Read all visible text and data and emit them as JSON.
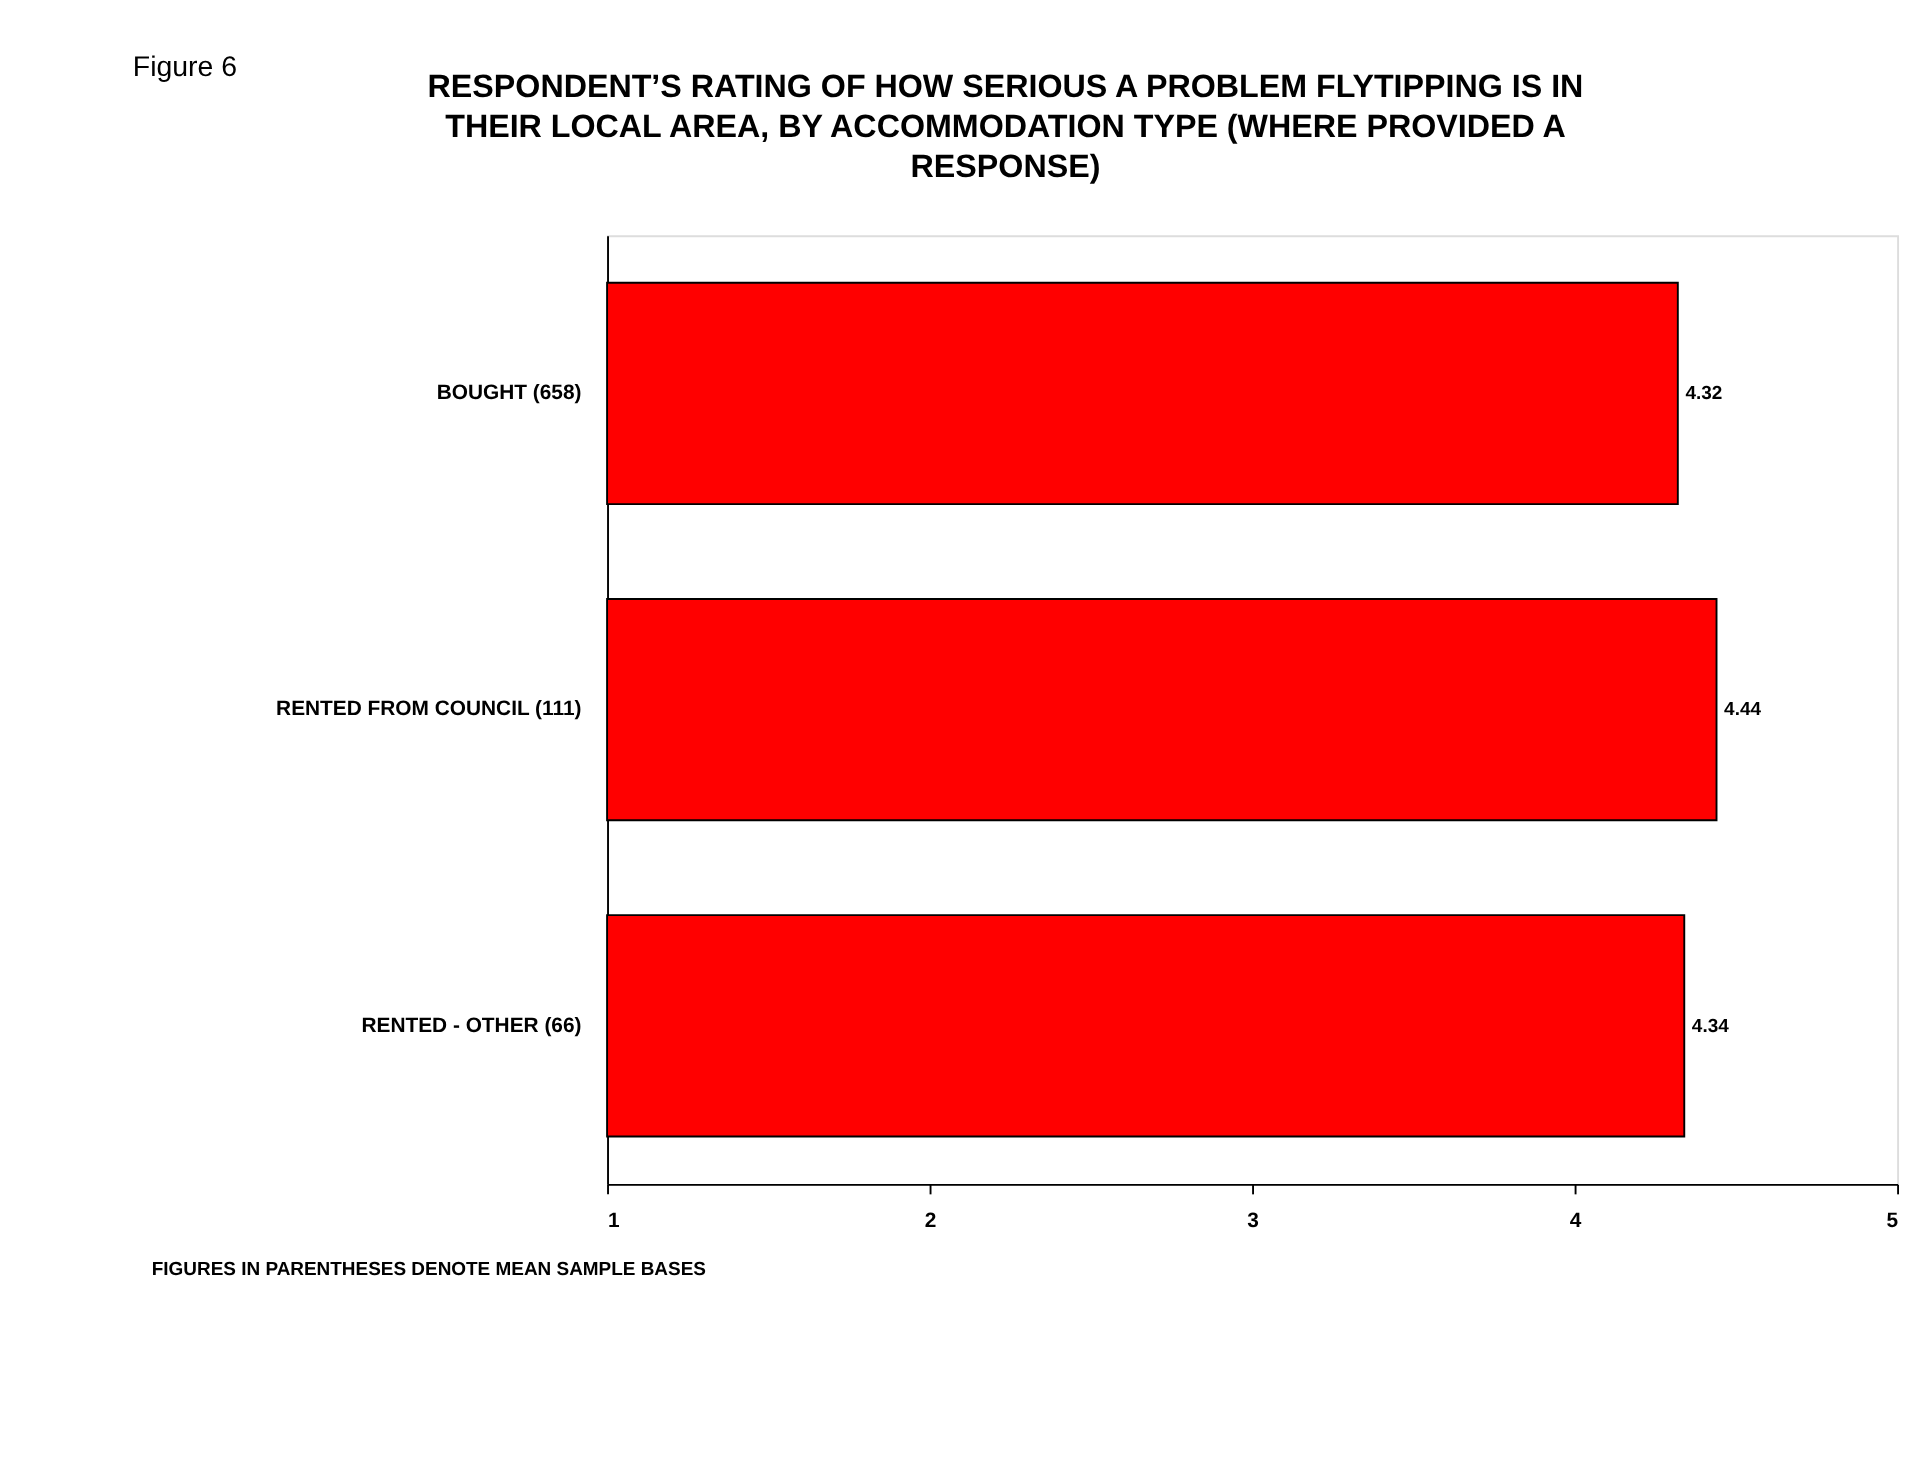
{
  "chart_data": {
    "type": "bar",
    "orientation": "horizontal",
    "title": "RESPONDENT’S RATING OF HOW SERIOUS A PROBLEM FLYTIPPING IS IN THEIR LOCAL AREA, BY ACCOMMODATION TYPE (WHERE PROVIDED A RESPONSE)",
    "categories": [
      "BOUGHT (658)",
      "RENTED FROM COUNCIL (111)",
      "RENTED - OTHER (66)"
    ],
    "values": [
      4.32,
      4.44,
      4.34
    ],
    "color": "#ff0000",
    "xlim": [
      1,
      5
    ],
    "xticks": [
      1,
      2,
      3,
      4,
      5
    ],
    "data_labels": true,
    "grid": false,
    "annotations": [
      "Figure 6",
      "FIGURES IN PARENTHESES DENOTE MEAN SAMPLE BASES"
    ]
  }
}
